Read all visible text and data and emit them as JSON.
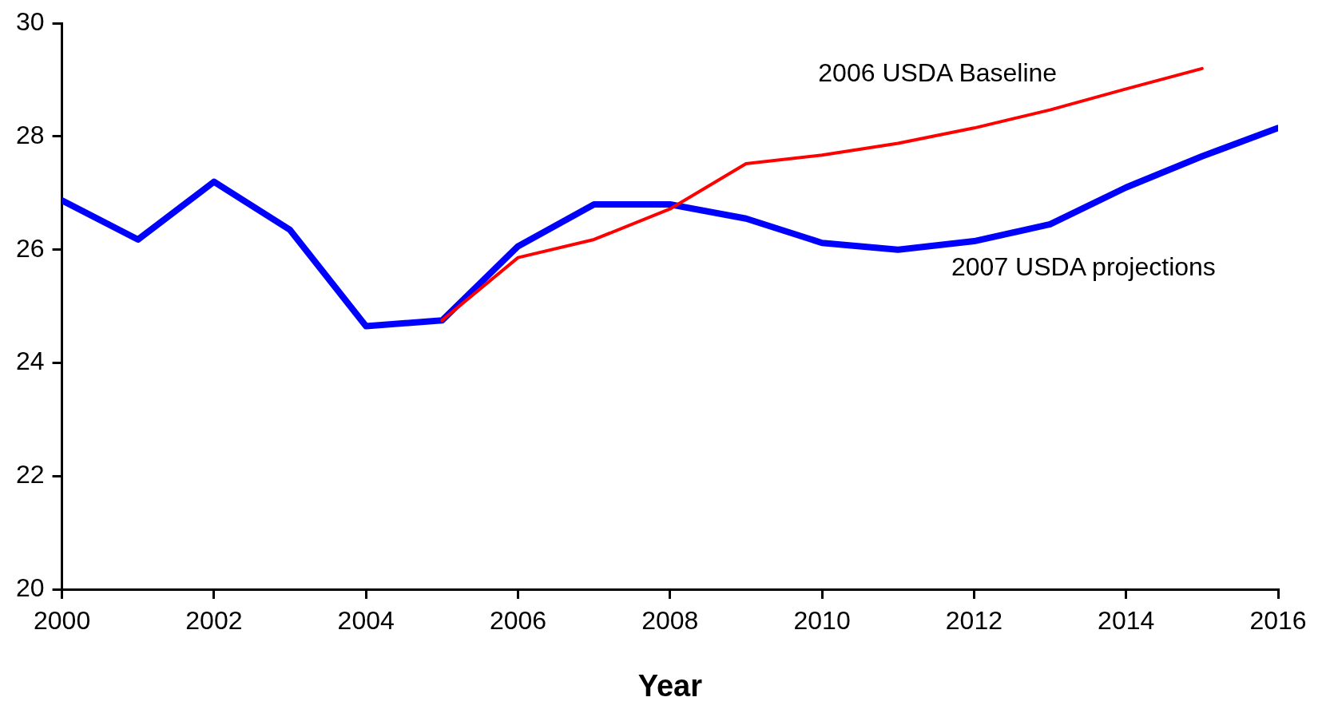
{
  "chart_data": {
    "type": "line",
    "xlabel": "Year",
    "x": [
      2000,
      2001,
      2002,
      2003,
      2004,
      2005,
      2006,
      2007,
      2008,
      2009,
      2010,
      2011,
      2012,
      2013,
      2014,
      2015,
      2016
    ],
    "series": [
      {
        "name": "2006 USDA Baseline",
        "color": "#ff0000",
        "values": [
          null,
          null,
          null,
          null,
          null,
          24.75,
          25.86,
          26.18,
          26.72,
          27.52,
          27.67,
          27.88,
          28.15,
          28.47,
          28.84,
          29.2,
          null
        ]
      },
      {
        "name": "2007 USDA projections",
        "color": "#0000ff",
        "values": [
          26.87,
          26.18,
          27.2,
          26.35,
          24.65,
          24.75,
          26.06,
          26.8,
          26.8,
          26.55,
          26.12,
          26.0,
          26.15,
          26.45,
          27.1,
          27.65,
          28.15
        ]
      }
    ],
    "xlim": [
      2000,
      2016
    ],
    "xticks": [
      2000,
      2002,
      2004,
      2006,
      2008,
      2010,
      2012,
      2014,
      2016
    ],
    "ylim": [
      20,
      30
    ],
    "yticks": [
      20,
      22,
      24,
      26,
      28,
      30
    ],
    "grid": false,
    "legend": false,
    "marker": "none",
    "line_style": "solid"
  }
}
